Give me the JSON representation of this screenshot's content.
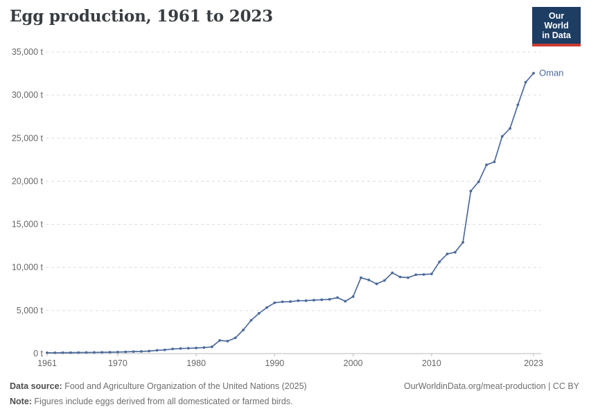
{
  "header": {
    "title": "Egg production, 1961 to 2023",
    "logo": {
      "line1": "Our World",
      "line2": "in Data"
    }
  },
  "chart_data": {
    "type": "line",
    "title": "Egg production, 1961 to 2023",
    "unit": "t",
    "xlabel": "",
    "ylabel": "",
    "xlim": [
      1961,
      2023
    ],
    "ylim": [
      0,
      35000
    ],
    "grid": "horizontal dashed",
    "legend": "end-of-line label",
    "x": [
      1961,
      1962,
      1963,
      1964,
      1965,
      1966,
      1967,
      1968,
      1969,
      1970,
      1971,
      1972,
      1973,
      1974,
      1975,
      1976,
      1977,
      1978,
      1979,
      1980,
      1981,
      1982,
      1983,
      1984,
      1985,
      1986,
      1987,
      1988,
      1989,
      1990,
      1991,
      1992,
      1993,
      1994,
      1995,
      1996,
      1997,
      1998,
      1999,
      2000,
      2001,
      2002,
      2003,
      2004,
      2005,
      2006,
      2007,
      2008,
      2009,
      2010,
      2011,
      2012,
      2013,
      2014,
      2015,
      2016,
      2017,
      2018,
      2019,
      2020,
      2021,
      2022,
      2023
    ],
    "series": [
      {
        "name": "Oman",
        "color": "#4C6A9C",
        "values": [
          100,
          100,
          110,
          110,
          120,
          130,
          140,
          150,
          160,
          180,
          200,
          230,
          250,
          290,
          380,
          430,
          540,
          590,
          620,
          650,
          700,
          780,
          1530,
          1450,
          1830,
          2740,
          3860,
          4670,
          5340,
          5900,
          6010,
          6030,
          6140,
          6140,
          6200,
          6250,
          6300,
          6500,
          6075,
          6615,
          8810,
          8545,
          8090,
          8490,
          9375,
          8890,
          8810,
          9150,
          9180,
          9240,
          10640,
          11570,
          11760,
          12910,
          18870,
          19940,
          21900,
          22250,
          25200,
          26130,
          28870,
          31500,
          32540
        ]
      }
    ],
    "yticks": [
      {
        "value": 0,
        "label": "0 t"
      },
      {
        "value": 5000,
        "label": "5,000 t"
      },
      {
        "value": 10000,
        "label": "10,000 t"
      },
      {
        "value": 15000,
        "label": "15,000 t"
      },
      {
        "value": 20000,
        "label": "20,000 t"
      },
      {
        "value": 25000,
        "label": "25,000 t"
      },
      {
        "value": 30000,
        "label": "30,000 t"
      },
      {
        "value": 35000,
        "label": "35,000 t"
      }
    ],
    "xticks": [
      {
        "value": 1961,
        "label": "1961"
      },
      {
        "value": 1970,
        "label": "1970"
      },
      {
        "value": 1980,
        "label": "1980"
      },
      {
        "value": 1990,
        "label": "1990"
      },
      {
        "value": 2000,
        "label": "2000"
      },
      {
        "value": 2010,
        "label": "2010"
      },
      {
        "value": 2023,
        "label": "2023"
      }
    ]
  },
  "footer": {
    "source_label": "Data source:",
    "source_text": " Food and Agriculture Organization of the United Nations (2025)",
    "note_label": "Note:",
    "note_text": " Figures include eggs derived from all domesticated or farmed birds.",
    "credit": "OurWorldinData.org/meat-production | CC BY"
  },
  "colors": {
    "line": "#4C6A9C",
    "entity_label": "#4C6A9C",
    "logo_navy": "#1d3d63",
    "logo_red": "#cc3b31",
    "axis_text": "#666666",
    "gridline": "#dcdcdc",
    "axis_line": "#b9b9b9"
  }
}
